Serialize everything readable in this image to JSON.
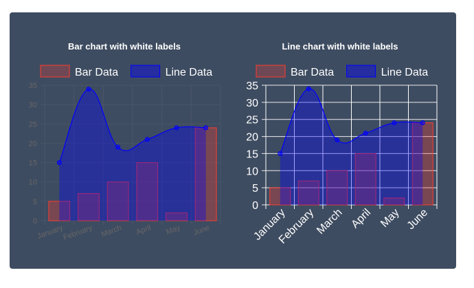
{
  "chart_data": [
    {
      "type": "bar",
      "title": "Bar chart with white labels",
      "categories": [
        "January",
        "February",
        "March",
        "April",
        "May",
        "June"
      ],
      "series": [
        {
          "name": "Bar Data",
          "type": "bar",
          "values": [
            5,
            7,
            10,
            15,
            2,
            24
          ],
          "color": "#ff3b30"
        },
        {
          "name": "Line Data",
          "type": "line",
          "values": [
            15,
            34,
            19,
            21,
            24,
            24
          ],
          "color": "#0000ff"
        }
      ],
      "ylim": [
        0,
        35
      ],
      "yticks": [
        0,
        5,
        10,
        15,
        20,
        25,
        30,
        35
      ],
      "grid": true,
      "legend": "top",
      "label_color": "#666666",
      "grid_color": "#4a5567"
    },
    {
      "type": "line",
      "title": "Line chart with white labels",
      "categories": [
        "January",
        "February",
        "March",
        "April",
        "May",
        "June"
      ],
      "series": [
        {
          "name": "Bar Data",
          "type": "bar",
          "values": [
            5,
            7,
            10,
            15,
            2,
            24
          ],
          "color": "#ff3b30"
        },
        {
          "name": "Line Data",
          "type": "line",
          "values": [
            15,
            34,
            19,
            21,
            24,
            24
          ],
          "color": "#0000ff"
        }
      ],
      "ylim": [
        0,
        35
      ],
      "yticks": [
        0,
        5,
        10,
        15,
        20,
        25,
        30,
        35
      ],
      "grid": true,
      "legend": "top",
      "label_color": "#ffffff",
      "grid_color": "#ffffff"
    }
  ]
}
